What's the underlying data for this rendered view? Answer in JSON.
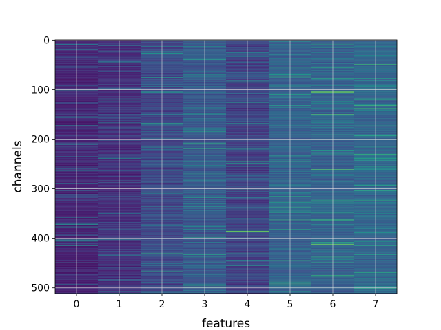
{
  "chart_data": {
    "type": "heatmap",
    "title": "",
    "xlabel": "features",
    "ylabel": "channels",
    "x_categories": [
      "0",
      "1",
      "2",
      "3",
      "4",
      "5",
      "6",
      "7"
    ],
    "x_ticks": [
      "0",
      "1",
      "2",
      "3",
      "4",
      "5",
      "6",
      "7"
    ],
    "y_ticks": [
      "0",
      "100",
      "200",
      "300",
      "400",
      "500"
    ],
    "xlim": [
      -0.5,
      7.5
    ],
    "ylim": [
      511.5,
      -0.5
    ],
    "n_rows": 512,
    "n_cols": 8,
    "colormap": "viridis",
    "grid": true,
    "legend": "none",
    "column_mean_intensity": [
      0.12,
      0.15,
      0.22,
      0.27,
      0.2,
      0.3,
      0.3,
      0.32
    ],
    "notable_cells": [
      {
        "feature": 6,
        "channel": 105,
        "value": 0.9
      },
      {
        "feature": 6,
        "channel": 151,
        "value": 0.95
      },
      {
        "feature": 6,
        "channel": 262,
        "value": 1.0
      },
      {
        "feature": 6,
        "channel": 412,
        "value": 0.8
      },
      {
        "feature": 4,
        "channel": 386,
        "value": 0.8
      },
      {
        "feature": 5,
        "channel": 70,
        "value": 0.55
      },
      {
        "feature": 6,
        "channel": 222,
        "value": 0.55
      },
      {
        "feature": 7,
        "channel": 193,
        "value": 0.6
      }
    ]
  }
}
